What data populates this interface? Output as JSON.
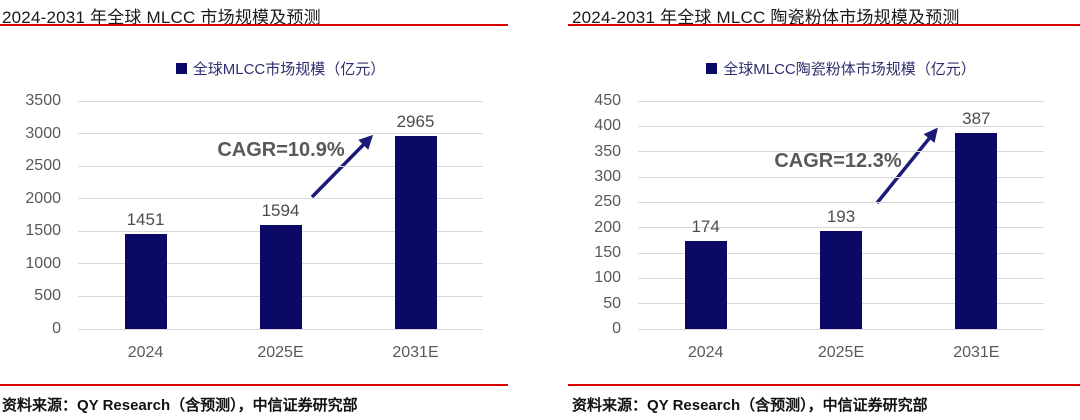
{
  "colors": {
    "background": "#ffffff",
    "bar": "#0a0a66",
    "rule_red": "#dd0000",
    "grid": "#d9d9d9",
    "axis_text": "#595959",
    "value_text": "#4d4d4d",
    "annotation_text": "#595959",
    "arrow": "#1b1b78",
    "legend_text": "#2e2e6e",
    "title_text": "#1a1a1a",
    "source_text": "#111111"
  },
  "chart_data": [
    {
      "type": "bar",
      "title": "2024-2031 年全球 MLCC 市场规模及预测",
      "legend": [
        "全球MLCC市场规模（亿元）"
      ],
      "legend_position": "top",
      "categories": [
        "2024",
        "2025E",
        "2031E"
      ],
      "values": [
        1451,
        1594,
        2965
      ],
      "xlabel": "",
      "ylabel": "",
      "ylim": [
        0,
        3500
      ],
      "ytick_step": 500,
      "grid": true,
      "annotation": "CAGR=10.9%",
      "source": "资料来源：QY Research（含预测），中信证券研究部"
    },
    {
      "type": "bar",
      "title": "2024-2031 年全球 MLCC 陶瓷粉体市场规模及预测",
      "legend": [
        "全球MLCC陶瓷粉体市场规模（亿元）"
      ],
      "legend_position": "top",
      "categories": [
        "2024",
        "2025E",
        "2031E"
      ],
      "values": [
        174,
        193,
        387
      ],
      "xlabel": "",
      "ylabel": "",
      "ylim": [
        0,
        450
      ],
      "ytick_step": 50,
      "grid": true,
      "annotation": "CAGR=12.3%",
      "source": "资料来源：QY Research（含预测），中信证券研究部"
    }
  ]
}
